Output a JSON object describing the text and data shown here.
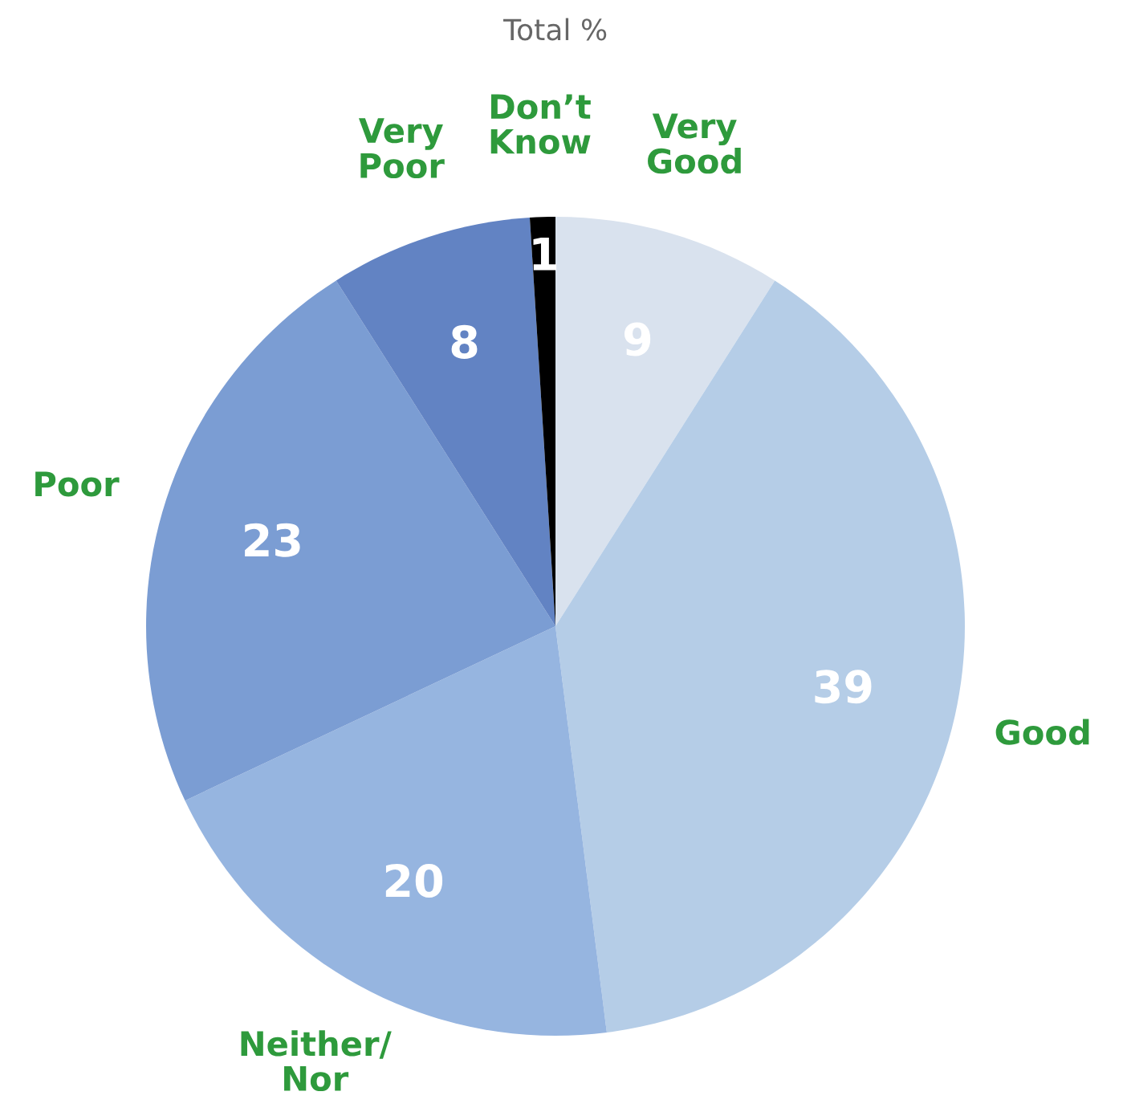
{
  "chart_data": {
    "type": "pie",
    "title": "Total %",
    "categories": [
      "Very\nGood",
      "Good",
      "Neither/\nNor",
      "Poor",
      "Very\nPoor",
      "Don’t\nKnow"
    ],
    "values": [
      9,
      39,
      20,
      23,
      8,
      1
    ],
    "colors": [
      "#d9e2ee",
      "#b5cde7",
      "#96b5e0",
      "#7b9dd3",
      "#6283c3",
      "#000000"
    ],
    "data_labels": true,
    "legend": false
  }
}
